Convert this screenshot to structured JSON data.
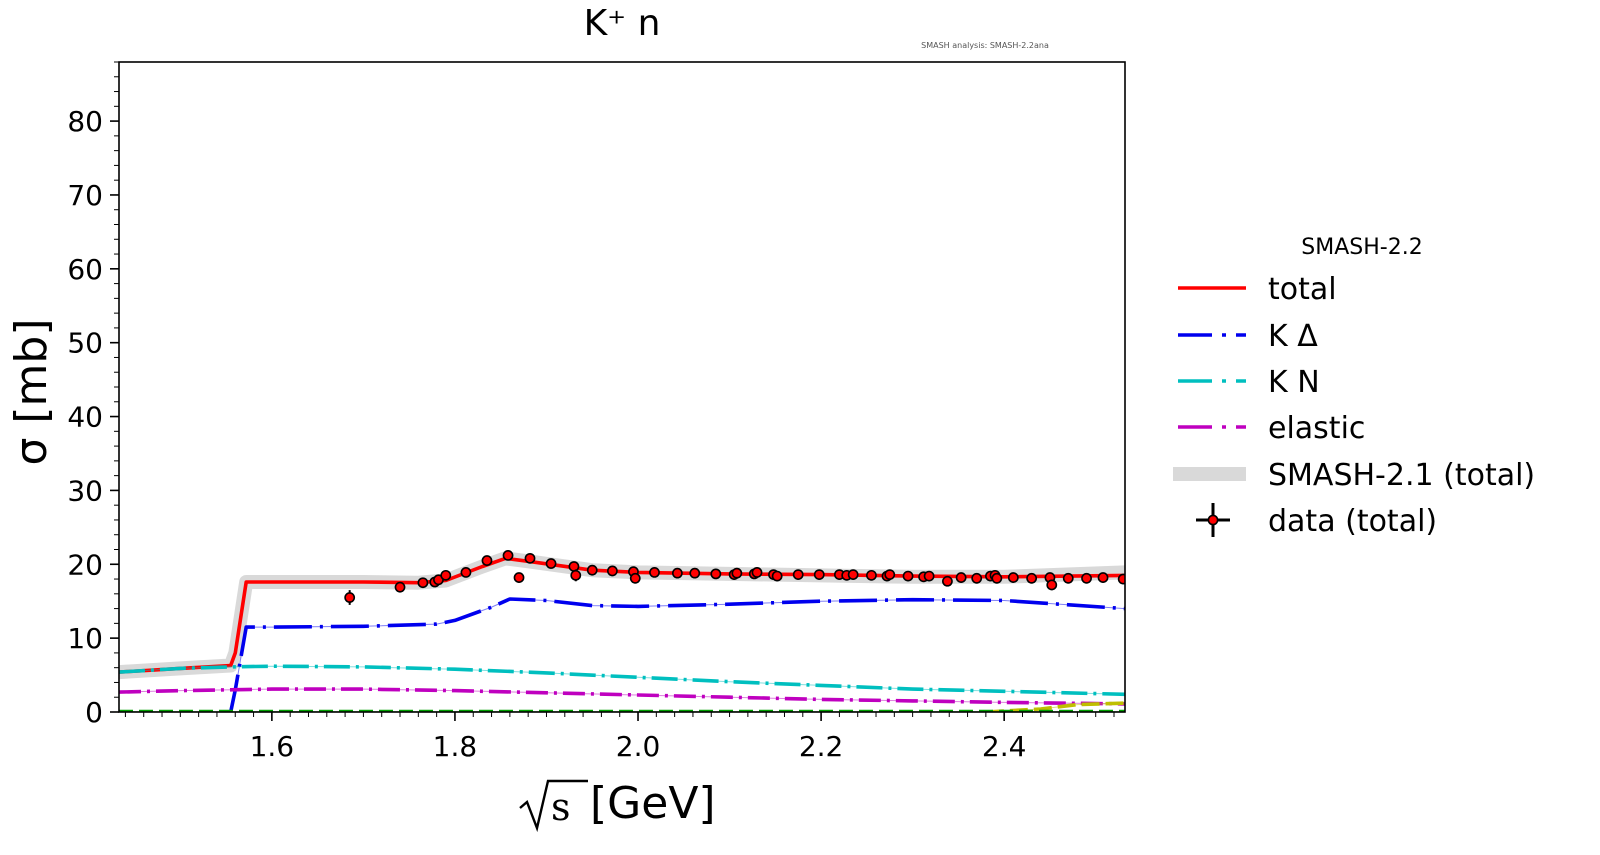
{
  "chart_data": {
    "type": "line",
    "title": "K⁺ n",
    "annotation": "SMASH analysis: SMASH-2.2ana",
    "xlabel": "[GeV]",
    "xlabel_symbol": "s",
    "ylabel": "σ [mb]",
    "xlim": [
      1.433,
      2.532
    ],
    "ylim": [
      0,
      88
    ],
    "x_ticks": [
      1.6,
      1.8,
      2.0,
      2.2,
      2.4
    ],
    "x_tick_labels": [
      "1.6",
      "1.8",
      "2.0",
      "2.2",
      "2.4"
    ],
    "y_ticks": [
      0,
      10,
      20,
      30,
      40,
      50,
      60,
      70,
      80
    ],
    "y_tick_labels": [
      "0",
      "10",
      "20",
      "30",
      "40",
      "50",
      "60",
      "70",
      "80"
    ],
    "grid": false,
    "legend": {
      "title": "SMASH-2.2",
      "placement": "right-outside",
      "entries": [
        {
          "label": "total",
          "color": "#ff0000",
          "style": "solid"
        },
        {
          "label": "K Δ",
          "color": "#0000ee",
          "style": "dashdot"
        },
        {
          "label": "K N",
          "color": "#00bfbf",
          "style": "dashdot"
        },
        {
          "label": "elastic",
          "color": "#bf00bf",
          "style": "dashdot"
        },
        {
          "label": "SMASH-2.1 (total)",
          "color": "#d0d0d0",
          "style": "band"
        },
        {
          "label": "data (total)",
          "color": "#ff0000",
          "style": "marker"
        }
      ]
    },
    "series": [
      {
        "name": "SMASH-2.1 (total)",
        "kind": "band",
        "color": "#d0d0d0",
        "x": [
          1.433,
          1.5,
          1.555,
          1.56,
          1.572,
          1.6,
          1.7,
          1.76,
          1.79,
          1.83,
          1.855,
          1.88,
          1.95,
          2.0,
          2.1,
          2.2,
          2.3,
          2.4,
          2.532
        ],
        "y": [
          5.4,
          5.9,
          6.3,
          8.0,
          17.6,
          17.6,
          17.6,
          17.5,
          17.8,
          19.7,
          20.8,
          20.4,
          19.2,
          18.9,
          18.7,
          18.5,
          18.3,
          18.3,
          18.9
        ]
      },
      {
        "name": "total",
        "kind": "line",
        "color": "#ff0000",
        "x": [
          1.433,
          1.5,
          1.555,
          1.56,
          1.572,
          1.6,
          1.7,
          1.76,
          1.79,
          1.83,
          1.855,
          1.88,
          1.95,
          2.0,
          2.1,
          2.2,
          2.3,
          2.4,
          2.532
        ],
        "y": [
          5.4,
          5.9,
          6.3,
          8.0,
          17.6,
          17.6,
          17.6,
          17.5,
          17.8,
          19.7,
          20.8,
          20.4,
          19.2,
          18.9,
          18.7,
          18.6,
          18.4,
          18.3,
          18.5
        ]
      },
      {
        "name": "K Δ",
        "kind": "line",
        "color": "#0000ee",
        "x": [
          1.555,
          1.56,
          1.572,
          1.6,
          1.7,
          1.78,
          1.8,
          1.84,
          1.86,
          1.9,
          1.95,
          2.0,
          2.1,
          2.2,
          2.3,
          2.4,
          2.532
        ],
        "y": [
          0,
          3.0,
          11.5,
          11.5,
          11.6,
          11.9,
          12.4,
          14.2,
          15.3,
          15.1,
          14.4,
          14.3,
          14.6,
          15.0,
          15.2,
          15.1,
          14.0
        ]
      },
      {
        "name": "K N",
        "kind": "line",
        "color": "#00bfbf",
        "x": [
          1.433,
          1.5,
          1.555,
          1.6,
          1.7,
          1.8,
          1.9,
          2.0,
          2.1,
          2.2,
          2.3,
          2.4,
          2.532
        ],
        "y": [
          5.4,
          5.9,
          6.1,
          6.2,
          6.1,
          5.8,
          5.3,
          4.7,
          4.1,
          3.6,
          3.1,
          2.8,
          2.4
        ]
      },
      {
        "name": "elastic",
        "kind": "line",
        "color": "#bf00bf",
        "x": [
          1.433,
          1.5,
          1.6,
          1.7,
          1.8,
          1.9,
          2.0,
          2.1,
          2.2,
          2.3,
          2.4,
          2.532
        ],
        "y": [
          2.7,
          2.9,
          3.1,
          3.1,
          2.9,
          2.6,
          2.3,
          2.0,
          1.7,
          1.5,
          1.3,
          1.1
        ]
      },
      {
        "name": "minor channel (yellow)",
        "kind": "line",
        "color": "#bfbf00",
        "x": [
          2.38,
          2.44,
          2.48,
          2.532
        ],
        "y": [
          0,
          0.4,
          1.0,
          1.2
        ]
      },
      {
        "name": "minor channel (green)",
        "kind": "line",
        "color": "#00a000",
        "x": [
          1.433,
          2.532
        ],
        "y": [
          0.05,
          0.05
        ]
      },
      {
        "name": "data (total)",
        "kind": "scatter",
        "color": "#ff0000",
        "x": [
          1.685,
          1.74,
          1.765,
          1.778,
          1.782,
          1.79,
          1.812,
          1.835,
          1.858,
          1.87,
          1.882,
          1.905,
          1.93,
          1.932,
          1.95,
          1.972,
          1.995,
          1.997,
          2.018,
          2.043,
          2.062,
          2.085,
          2.105,
          2.108,
          2.127,
          2.13,
          2.148,
          2.152,
          2.175,
          2.198,
          2.22,
          2.228,
          2.235,
          2.255,
          2.272,
          2.275,
          2.295,
          2.312,
          2.318,
          2.338,
          2.353,
          2.37,
          2.385,
          2.39,
          2.392,
          2.41,
          2.43,
          2.45,
          2.452,
          2.47,
          2.49,
          2.508,
          2.53
        ],
        "y": [
          15.5,
          16.9,
          17.5,
          17.6,
          17.9,
          18.5,
          18.9,
          20.5,
          21.2,
          18.2,
          20.8,
          20.1,
          19.7,
          18.5,
          19.2,
          19.1,
          19.0,
          18.1,
          18.9,
          18.8,
          18.8,
          18.7,
          18.6,
          18.8,
          18.7,
          18.9,
          18.6,
          18.4,
          18.6,
          18.6,
          18.6,
          18.5,
          18.6,
          18.5,
          18.4,
          18.6,
          18.4,
          18.3,
          18.4,
          17.7,
          18.2,
          18.1,
          18.4,
          18.5,
          18.1,
          18.2,
          18.1,
          18.2,
          17.2,
          18.1,
          18.1,
          18.2,
          18.0
        ],
        "err": [
          1.0,
          0.5,
          0.5,
          0.6,
          0.5,
          0.5,
          0.4,
          0.4,
          0.4,
          0.5,
          0.4,
          0.4,
          0.4,
          0.8,
          0.4,
          0.4,
          0.4,
          0.7,
          0.4,
          0.4,
          0.4,
          0.4,
          0.4,
          0.6,
          0.4,
          0.4,
          0.4,
          0.4,
          0.4,
          0.4,
          0.4,
          0.4,
          0.5,
          0.4,
          0.4,
          0.4,
          0.4,
          0.4,
          0.4,
          0.5,
          0.4,
          0.4,
          0.4,
          0.4,
          0.5,
          0.4,
          0.4,
          0.4,
          0.7,
          0.4,
          0.4,
          0.4,
          0.4
        ]
      }
    ]
  }
}
